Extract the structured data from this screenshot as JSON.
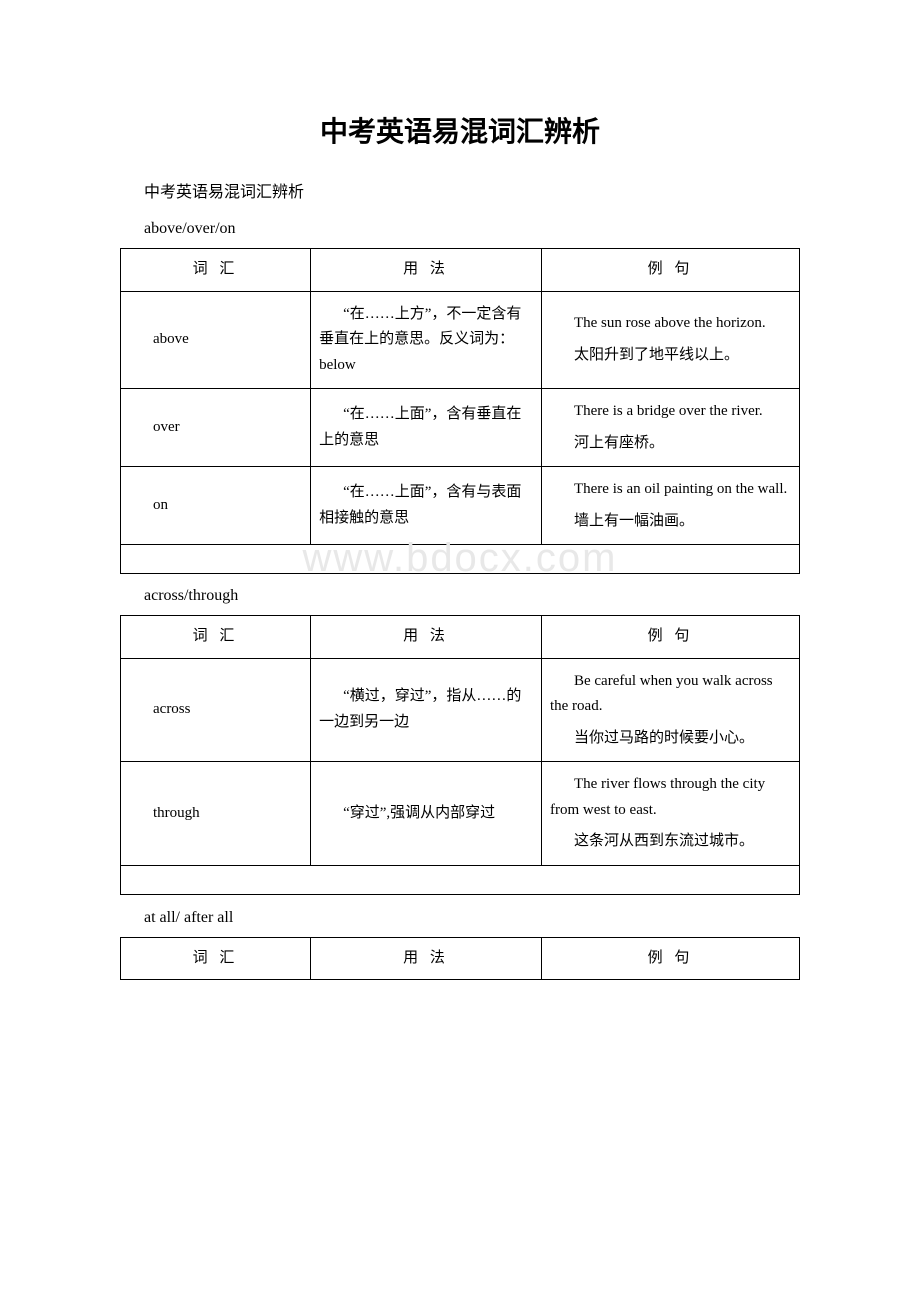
{
  "title": "中考英语易混词汇辨析",
  "subtitle": "中考英语易混词汇辨析",
  "watermark": "www.bdocx.com",
  "headers": {
    "word": "词 汇",
    "usage": "用 法",
    "example": "例 句"
  },
  "sections": [
    {
      "heading": "above/over/on",
      "rows": [
        {
          "word": "above",
          "usage": "“在……上方”，不一定含有垂直在上的意思。反义词为：below",
          "example_en": "The sun rose above the horizon.",
          "example_zh": "太阳升到了地平线以上。"
        },
        {
          "word": "over",
          "usage": "“在……上面”，含有垂直在上的意思",
          "example_en": "There is a bridge over the river.",
          "example_zh": "河上有座桥。"
        },
        {
          "word": "on",
          "usage": "“在……上面”，含有与表面相接触的意思",
          "example_en": "There is an oil painting on the wall.",
          "example_zh": "墙上有一幅油画。"
        }
      ],
      "has_empty_row": true,
      "show_watermark_after": true
    },
    {
      "heading": "across/through",
      "rows": [
        {
          "word": "across",
          "usage": "“横过，穿过”，指从……的一边到另一边",
          "example_en": "Be careful when you walk across the road.",
          "example_zh": "当你过马路的时候要小心。"
        },
        {
          "word": "through",
          "usage": "“穿过”,强调从内部穿过",
          "example_en": "The river flows through the city from west to east.",
          "example_zh": "这条河从西到东流过城市。"
        }
      ],
      "has_empty_row": true,
      "show_watermark_after": false
    },
    {
      "heading": "at all/ after all",
      "rows": [],
      "header_only": true
    }
  ],
  "colors": {
    "text": "#000000",
    "border": "#000000",
    "background": "#ffffff",
    "watermark": "#e8e8e8"
  }
}
